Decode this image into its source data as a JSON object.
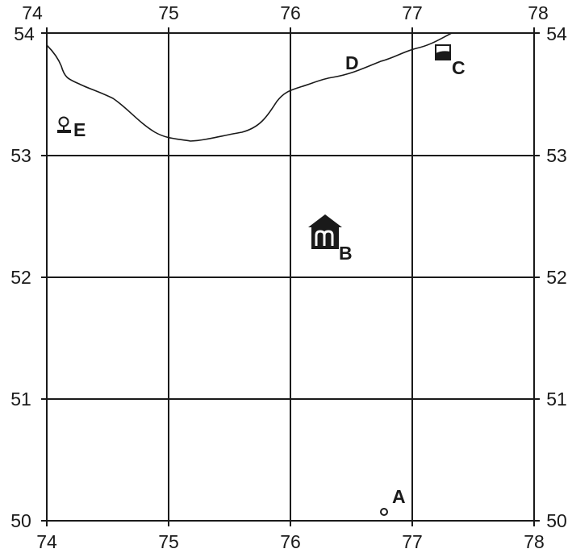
{
  "map": {
    "x_ticks": [
      "74",
      "75",
      "76",
      "77",
      "78"
    ],
    "y_ticks": [
      "54",
      "53",
      "52",
      "51",
      "50"
    ],
    "features": {
      "a": {
        "label": "A",
        "symbol": "small-circle-icon"
      },
      "b": {
        "label": "B",
        "symbol": "museum-building-icon"
      },
      "c": {
        "label": "C",
        "symbol": "half-filled-square-icon"
      },
      "d": {
        "label": "D",
        "symbol": "river-line"
      },
      "e": {
        "label": "E",
        "symbol": "pin-marker-icon"
      }
    }
  }
}
